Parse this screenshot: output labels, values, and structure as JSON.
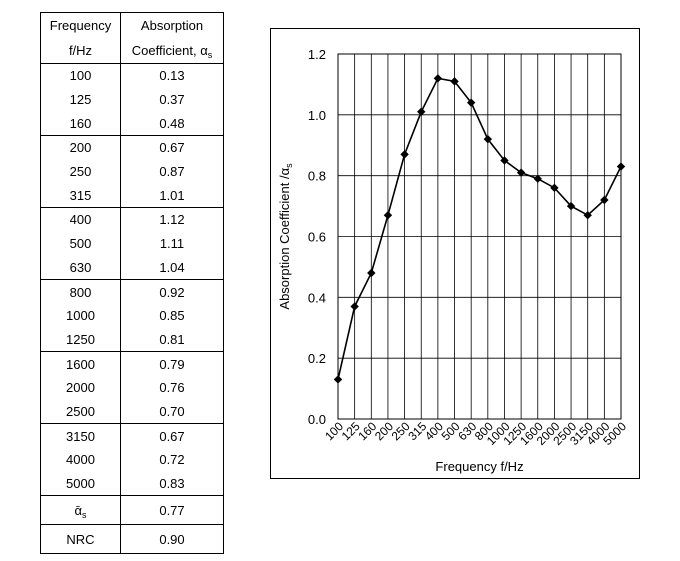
{
  "table": {
    "header": {
      "col1_line1": "Frequency",
      "col1_line2": "f/Hz",
      "col2_line1": "Absorption",
      "col2_line2": "Coefficient, α",
      "col2_sub": "s"
    },
    "groups": [
      [
        {
          "f": "100",
          "a": "0.13"
        },
        {
          "f": "125",
          "a": "0.37"
        },
        {
          "f": "160",
          "a": "0.48"
        }
      ],
      [
        {
          "f": "200",
          "a": "0.67"
        },
        {
          "f": "250",
          "a": "0.87"
        },
        {
          "f": "315",
          "a": "1.01"
        }
      ],
      [
        {
          "f": "400",
          "a": "1.12"
        },
        {
          "f": "500",
          "a": "1.11"
        },
        {
          "f": "630",
          "a": "1.04"
        }
      ],
      [
        {
          "f": "800",
          "a": "0.92"
        },
        {
          "f": "1000",
          "a": "0.85"
        },
        {
          "f": "1250",
          "a": "0.81"
        }
      ],
      [
        {
          "f": "1600",
          "a": "0.79"
        },
        {
          "f": "2000",
          "a": "0.76"
        },
        {
          "f": "2500",
          "a": "0.70"
        }
      ],
      [
        {
          "f": "3150",
          "a": "0.67"
        },
        {
          "f": "4000",
          "a": "0.72"
        },
        {
          "f": "5000",
          "a": "0.83"
        }
      ]
    ],
    "mean": {
      "label": "ᾱ",
      "sub": "s",
      "value": "0.77"
    },
    "nrc": {
      "label": "NRC",
      "value": "0.90"
    }
  },
  "chart_data": {
    "type": "line",
    "marker": "diamond",
    "categories": [
      "100",
      "125",
      "160",
      "200",
      "250",
      "315",
      "400",
      "500",
      "630",
      "800",
      "1000",
      "1250",
      "1600",
      "2000",
      "2500",
      "3150",
      "4000",
      "5000"
    ],
    "values": [
      0.13,
      0.37,
      0.48,
      0.67,
      0.87,
      1.01,
      1.12,
      1.11,
      1.04,
      0.92,
      0.85,
      0.81,
      0.79,
      0.76,
      0.7,
      0.67,
      0.72,
      0.83
    ],
    "title": "",
    "xlabel": "Frequency f/Hz",
    "ylabel": "Absorption Coefficient /α",
    "ylabel_sub": "s",
    "ylim": [
      0,
      1.2
    ],
    "yticks": [
      0.0,
      0.2,
      0.4,
      0.6,
      0.8,
      1.0,
      1.2
    ],
    "ytick_labels": [
      "0.0",
      "0.2",
      "0.4",
      "0.6",
      "0.8",
      "1.0",
      "1.2"
    ],
    "grid": true,
    "colors": {
      "line": "#000000",
      "grid": "#000000"
    }
  }
}
